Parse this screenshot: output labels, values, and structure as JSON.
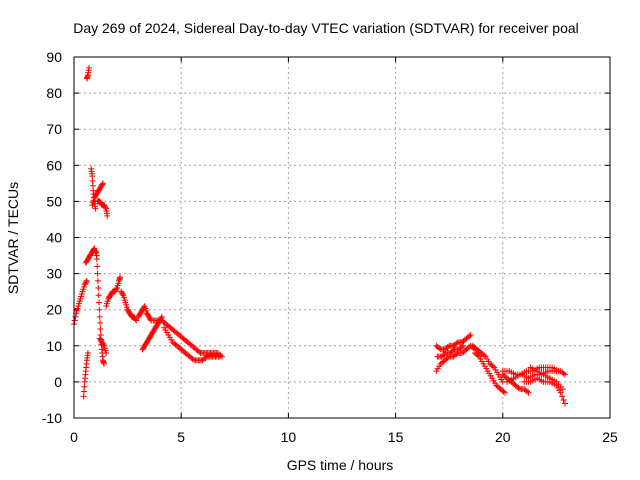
{
  "chart_data": {
    "type": "scatter",
    "title": "Day 269 of 2024, Sidereal Day-to-day VTEC variation (SDTVAR) for receiver poal",
    "xlabel": "GPS time / hours",
    "ylabel": "SDTVAR / TECUs",
    "xlim": [
      0,
      25
    ],
    "ylim": [
      -10,
      90
    ],
    "xticks": [
      0,
      5,
      10,
      15,
      20,
      25
    ],
    "yticks": [
      -10,
      0,
      10,
      20,
      30,
      40,
      50,
      60,
      70,
      80,
      90
    ],
    "grid": true,
    "marker": "+",
    "series": [
      {
        "name": "SDTVAR",
        "color": "#ff0000",
        "segments": [
          [
            [
              0.0,
              16
            ],
            [
              0.1,
              19
            ],
            [
              0.2,
              21
            ],
            [
              0.3,
              23
            ],
            [
              0.4,
              25
            ],
            [
              0.5,
              27
            ],
            [
              0.6,
              28
            ]
          ],
          [
            [
              0.45,
              -4
            ],
            [
              0.5,
              0
            ],
            [
              0.55,
              3
            ],
            [
              0.6,
              6
            ],
            [
              0.65,
              8
            ]
          ],
          [
            [
              0.55,
              33
            ],
            [
              0.65,
              34
            ],
            [
              0.75,
              35
            ],
            [
              0.85,
              36
            ],
            [
              0.95,
              37
            ],
            [
              1.05,
              35
            ]
          ],
          [
            [
              0.6,
              84
            ],
            [
              0.65,
              85
            ],
            [
              0.7,
              87
            ]
          ],
          [
            [
              0.8,
              59
            ],
            [
              0.85,
              57
            ],
            [
              0.9,
              53
            ],
            [
              0.95,
              50
            ],
            [
              1.0,
              48
            ]
          ],
          [
            [
              0.85,
              49
            ],
            [
              0.95,
              51
            ],
            [
              1.05,
              52
            ],
            [
              1.15,
              53
            ],
            [
              1.25,
              54
            ],
            [
              1.35,
              55
            ]
          ],
          [
            [
              1.05,
              36
            ],
            [
              1.1,
              30
            ],
            [
              1.15,
              24
            ],
            [
              1.2,
              18
            ],
            [
              1.25,
              13
            ],
            [
              1.3,
              9
            ],
            [
              1.35,
              6
            ],
            [
              1.4,
              5
            ]
          ],
          [
            [
              1.1,
              50
            ],
            [
              1.2,
              50
            ],
            [
              1.3,
              49
            ],
            [
              1.4,
              49
            ],
            [
              1.5,
              48
            ],
            [
              1.55,
              46
            ]
          ],
          [
            [
              1.2,
              12
            ],
            [
              1.3,
              11
            ],
            [
              1.4,
              10
            ],
            [
              1.5,
              8
            ]
          ],
          [
            [
              1.5,
              21
            ],
            [
              1.6,
              23
            ],
            [
              1.7,
              24
            ],
            [
              1.8,
              25
            ],
            [
              1.9,
              25
            ],
            [
              2.0,
              26
            ],
            [
              2.1,
              28
            ],
            [
              2.15,
              29
            ]
          ],
          [
            [
              2.2,
              25
            ],
            [
              2.3,
              24
            ],
            [
              2.4,
              22
            ],
            [
              2.5,
              20
            ],
            [
              2.6,
              19
            ],
            [
              2.7,
              18
            ],
            [
              2.8,
              18
            ],
            [
              2.9,
              17
            ]
          ],
          [
            [
              3.0,
              18
            ],
            [
              3.1,
              19
            ],
            [
              3.2,
              20
            ],
            [
              3.3,
              21
            ],
            [
              3.4,
              19
            ],
            [
              3.5,
              18
            ],
            [
              3.6,
              17
            ]
          ],
          [
            [
              3.2,
              9
            ],
            [
              3.3,
              10
            ],
            [
              3.4,
              11
            ],
            [
              3.5,
              12
            ],
            [
              3.6,
              13
            ],
            [
              3.7,
              14
            ],
            [
              3.8,
              15
            ],
            [
              3.9,
              16
            ],
            [
              4.0,
              17
            ],
            [
              4.1,
              18
            ]
          ],
          [
            [
              3.7,
              17
            ],
            [
              3.9,
              17
            ],
            [
              4.1,
              17
            ],
            [
              4.3,
              16
            ],
            [
              4.5,
              15
            ],
            [
              4.7,
              14
            ],
            [
              4.9,
              13
            ],
            [
              5.1,
              12
            ],
            [
              5.3,
              11
            ],
            [
              5.5,
              10
            ],
            [
              5.7,
              9
            ],
            [
              5.9,
              8
            ],
            [
              6.1,
              8
            ],
            [
              6.3,
              8
            ],
            [
              6.5,
              8
            ],
            [
              6.7,
              8
            ],
            [
              6.9,
              7
            ]
          ],
          [
            [
              4.2,
              15
            ],
            [
              4.4,
              13
            ],
            [
              4.6,
              11
            ],
            [
              4.8,
              10
            ],
            [
              5.0,
              9
            ],
            [
              5.2,
              8
            ],
            [
              5.4,
              7
            ],
            [
              5.6,
              6
            ],
            [
              5.8,
              6
            ],
            [
              6.0,
              6
            ],
            [
              6.2,
              7
            ],
            [
              6.4,
              7
            ],
            [
              6.6,
              7
            ],
            [
              6.8,
              7
            ]
          ],
          [
            [
              16.9,
              10
            ],
            [
              17.1,
              9
            ],
            [
              17.3,
              9
            ],
            [
              17.5,
              10
            ],
            [
              17.7,
              10
            ],
            [
              17.9,
              11
            ],
            [
              18.1,
              11
            ],
            [
              18.3,
              12
            ],
            [
              18.5,
              13
            ]
          ],
          [
            [
              16.9,
              3
            ],
            [
              17.1,
              5
            ],
            [
              17.3,
              6
            ],
            [
              17.5,
              7
            ],
            [
              17.7,
              7
            ],
            [
              17.9,
              8
            ],
            [
              18.1,
              8
            ],
            [
              18.3,
              9
            ],
            [
              18.5,
              10
            ],
            [
              18.7,
              9
            ]
          ],
          [
            [
              16.95,
              7
            ],
            [
              17.15,
              7
            ],
            [
              17.35,
              8
            ],
            [
              17.55,
              8
            ],
            [
              17.75,
              9
            ],
            [
              17.95,
              9
            ],
            [
              18.15,
              10
            ]
          ],
          [
            [
              18.6,
              10
            ],
            [
              18.8,
              9
            ],
            [
              19.0,
              8
            ],
            [
              19.2,
              7
            ],
            [
              19.4,
              5
            ],
            [
              19.6,
              4
            ],
            [
              19.8,
              2
            ],
            [
              20.0,
              0
            ]
          ],
          [
            [
              18.7,
              8
            ],
            [
              18.9,
              7
            ],
            [
              19.1,
              5
            ],
            [
              19.3,
              3
            ],
            [
              19.5,
              1
            ],
            [
              19.7,
              -1
            ],
            [
              19.9,
              -2
            ],
            [
              20.1,
              -3
            ]
          ],
          [
            [
              20.0,
              2
            ],
            [
              20.2,
              1
            ],
            [
              20.4,
              0
            ],
            [
              20.6,
              -1
            ],
            [
              20.8,
              -2
            ],
            [
              21.0,
              -2
            ],
            [
              21.2,
              -3
            ]
          ],
          [
            [
              20.0,
              3
            ],
            [
              20.3,
              3
            ],
            [
              20.6,
              2
            ],
            [
              20.9,
              2
            ],
            [
              21.2,
              1
            ],
            [
              21.5,
              2
            ],
            [
              21.8,
              2
            ],
            [
              22.1,
              3
            ],
            [
              22.4,
              3
            ],
            [
              22.7,
              3
            ],
            [
              22.9,
              2
            ]
          ],
          [
            [
              20.2,
              0
            ],
            [
              20.5,
              1
            ],
            [
              20.8,
              2
            ],
            [
              21.1,
              3
            ],
            [
              21.4,
              3
            ],
            [
              21.7,
              4
            ],
            [
              22.0,
              4
            ],
            [
              22.3,
              4
            ],
            [
              22.6,
              3
            ]
          ],
          [
            [
              21.0,
              0
            ],
            [
              21.3,
              0
            ],
            [
              21.6,
              1
            ],
            [
              21.9,
              0
            ],
            [
              22.2,
              0
            ],
            [
              22.5,
              -1
            ],
            [
              22.7,
              -3
            ],
            [
              22.9,
              -6
            ]
          ],
          [
            [
              21.3,
              4
            ],
            [
              21.6,
              3
            ],
            [
              21.9,
              2
            ],
            [
              22.2,
              1
            ],
            [
              22.5,
              0
            ],
            [
              22.8,
              -2
            ]
          ]
        ]
      }
    ]
  }
}
